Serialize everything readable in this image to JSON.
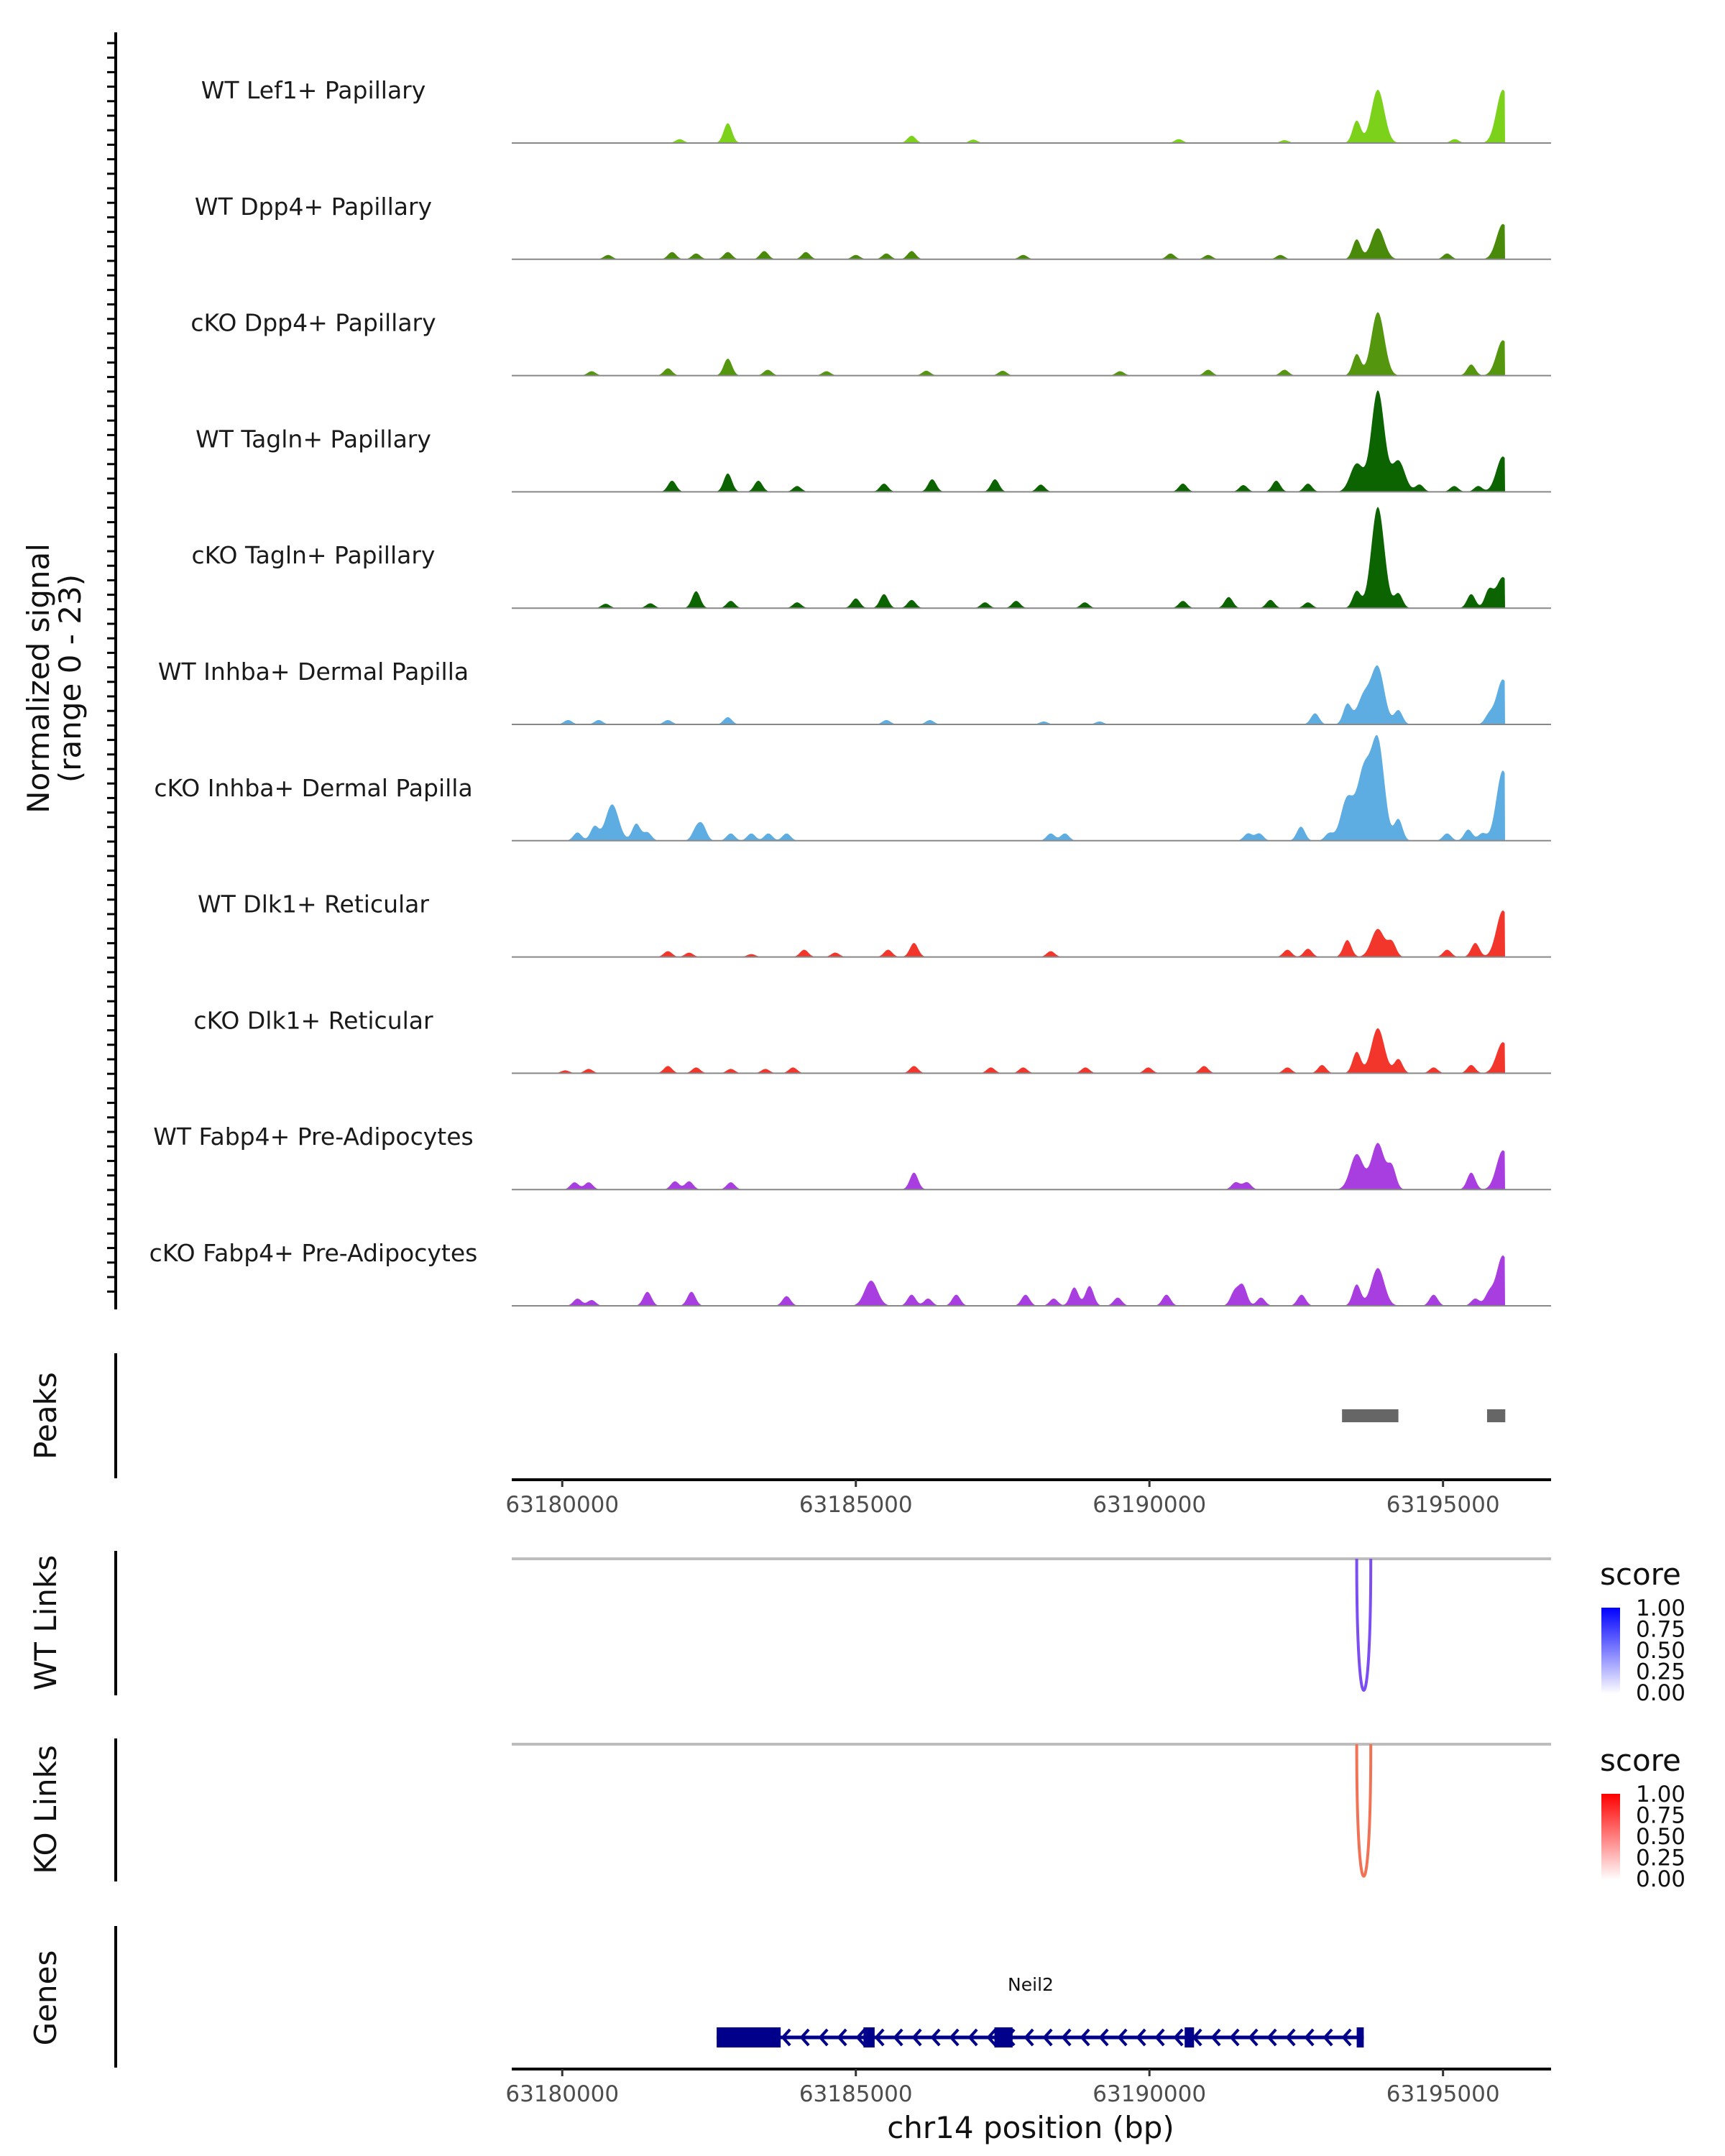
{
  "chart_data": {
    "type": "area",
    "title": "",
    "xlabel": "chr14 position (bp)",
    "ylabel": "Normalized signal\n(range 0 - 23)",
    "ylabel_line1": "Normalized signal",
    "ylabel_line2": "(range 0 - 23)",
    "xlim": [
      63179140,
      63196840
    ],
    "ylim": [
      0,
      23
    ],
    "x_ticks": [
      "63180000",
      "63185000",
      "63190000",
      "63195000"
    ],
    "x_tick_values": [
      63180000,
      63185000,
      63190000,
      63195000
    ],
    "tracks": [
      {
        "name": "WT Lef1+ Papillary",
        "color": "#7CD11A",
        "peaks": [
          [
            63182820,
            4.1
          ],
          [
            63185950,
            1.5
          ],
          [
            63193530,
            4.6
          ],
          [
            63193890,
            11.0
          ],
          [
            63196020,
            11.0
          ],
          [
            63182000,
            0.8
          ],
          [
            63187000,
            0.7
          ],
          [
            63190500,
            0.8
          ],
          [
            63192300,
            0.6
          ],
          [
            63195200,
            0.8
          ]
        ]
      },
      {
        "name": "WT Dpp4+ Papillary",
        "color": "#4A8A0A",
        "peaks": [
          [
            63180780,
            0.9
          ],
          [
            63181870,
            1.5
          ],
          [
            63182280,
            1.2
          ],
          [
            63182820,
            1.5
          ],
          [
            63183440,
            1.7
          ],
          [
            63184150,
            1.5
          ],
          [
            63185000,
            0.9
          ],
          [
            63185520,
            1.2
          ],
          [
            63185950,
            1.7
          ],
          [
            63187850,
            0.9
          ],
          [
            63190360,
            1.2
          ],
          [
            63191000,
            0.9
          ],
          [
            63192230,
            0.9
          ],
          [
            63193530,
            4.1
          ],
          [
            63193890,
            6.4
          ],
          [
            63195070,
            1.2
          ],
          [
            63196020,
            7.3
          ]
        ]
      },
      {
        "name": "cKO Dpp4+ Papillary",
        "color": "#55960F",
        "peaks": [
          [
            63180500,
            0.9
          ],
          [
            63181800,
            1.5
          ],
          [
            63182820,
            3.5
          ],
          [
            63183500,
            1.2
          ],
          [
            63184500,
            0.9
          ],
          [
            63186200,
            1.0
          ],
          [
            63187500,
            1.0
          ],
          [
            63189500,
            0.9
          ],
          [
            63191000,
            1.2
          ],
          [
            63192300,
            1.2
          ],
          [
            63193530,
            4.4
          ],
          [
            63193890,
            13.1
          ],
          [
            63195480,
            2.3
          ],
          [
            63196020,
            7.3
          ]
        ]
      },
      {
        "name": "WT Tagln+ Papillary",
        "color": "#0B6400",
        "peaks": [
          [
            63181870,
            2.3
          ],
          [
            63182820,
            3.8
          ],
          [
            63183340,
            2.3
          ],
          [
            63184000,
            1.2
          ],
          [
            63185480,
            1.7
          ],
          [
            63186300,
            2.6
          ],
          [
            63187370,
            2.6
          ],
          [
            63188150,
            1.5
          ],
          [
            63190570,
            1.7
          ],
          [
            63191600,
            1.4
          ],
          [
            63192160,
            2.3
          ],
          [
            63192700,
            1.7
          ],
          [
            63193530,
            5.8
          ],
          [
            63193890,
            20.9
          ],
          [
            63194240,
            6.4
          ],
          [
            63194600,
            1.5
          ],
          [
            63195190,
            1.2
          ],
          [
            63195600,
            1.2
          ],
          [
            63196020,
            7.3
          ]
        ]
      },
      {
        "name": "cKO Tagln+ Papillary",
        "color": "#0B6400",
        "peaks": [
          [
            63180740,
            0.9
          ],
          [
            63181500,
            1.0
          ],
          [
            63182280,
            3.5
          ],
          [
            63182870,
            1.5
          ],
          [
            63184000,
            1.2
          ],
          [
            63185000,
            2.0
          ],
          [
            63185480,
            2.9
          ],
          [
            63185950,
            1.7
          ],
          [
            63187200,
            1.2
          ],
          [
            63187730,
            1.5
          ],
          [
            63188900,
            1.2
          ],
          [
            63190570,
            1.5
          ],
          [
            63191350,
            2.3
          ],
          [
            63192060,
            1.7
          ],
          [
            63192700,
            1.2
          ],
          [
            63193530,
            3.5
          ],
          [
            63193890,
            20.9
          ],
          [
            63194240,
            3.0
          ],
          [
            63195480,
            2.9
          ],
          [
            63195780,
            3.5
          ],
          [
            63196020,
            6.4
          ]
        ]
      },
      {
        "name": "WT Inhba+ Dermal Papilla",
        "color": "#5DADE2",
        "peaks": [
          [
            63180100,
            0.9
          ],
          [
            63180620,
            0.9
          ],
          [
            63181800,
            0.9
          ],
          [
            63182820,
            1.5
          ],
          [
            63185520,
            0.9
          ],
          [
            63186260,
            0.9
          ],
          [
            63188200,
            0.6
          ],
          [
            63189150,
            0.6
          ],
          [
            63192820,
            2.3
          ],
          [
            63193370,
            4.1
          ],
          [
            63193650,
            5.8
          ],
          [
            63193890,
            11.6
          ],
          [
            63194240,
            2.9
          ],
          [
            63195780,
            1.7
          ],
          [
            63196020,
            9.3
          ]
        ]
      },
      {
        "name": "cKO Inhba+ Dermal Papilla",
        "color": "#5DADE2",
        "peaks": [
          [
            63180260,
            1.7
          ],
          [
            63180550,
            2.9
          ],
          [
            63180850,
            7.5
          ],
          [
            63181260,
            3.5
          ],
          [
            63181450,
            1.7
          ],
          [
            63182280,
            2.3
          ],
          [
            63182390,
            2.9
          ],
          [
            63182870,
            1.5
          ],
          [
            63183220,
            1.5
          ],
          [
            63183510,
            1.5
          ],
          [
            63183820,
            1.5
          ],
          [
            63188320,
            1.5
          ],
          [
            63188560,
            1.5
          ],
          [
            63191680,
            1.5
          ],
          [
            63191870,
            1.5
          ],
          [
            63192580,
            2.9
          ],
          [
            63193060,
            1.5
          ],
          [
            63193370,
            8.7
          ],
          [
            63193650,
            13.9
          ],
          [
            63193890,
            20.3
          ],
          [
            63194240,
            4.4
          ],
          [
            63195070,
            1.5
          ],
          [
            63195430,
            2.3
          ],
          [
            63195670,
            1.5
          ],
          [
            63196020,
            14.5
          ]
        ]
      },
      {
        "name": "WT Dlk1+ Reticular",
        "color": "#F2362C",
        "peaks": [
          [
            63181800,
            1.2
          ],
          [
            63182160,
            0.9
          ],
          [
            63183220,
            0.6
          ],
          [
            63184120,
            1.5
          ],
          [
            63184650,
            0.9
          ],
          [
            63185550,
            1.5
          ],
          [
            63185990,
            2.9
          ],
          [
            63188320,
            1.2
          ],
          [
            63192350,
            1.5
          ],
          [
            63192700,
            1.7
          ],
          [
            63193370,
            3.5
          ],
          [
            63193890,
            5.8
          ],
          [
            63194130,
            2.9
          ],
          [
            63195070,
            1.5
          ],
          [
            63195550,
            2.9
          ],
          [
            63196020,
            9.6
          ]
        ]
      },
      {
        "name": "cKO Dlk1+ Reticular",
        "color": "#F2362C",
        "peaks": [
          [
            63180050,
            0.6
          ],
          [
            63180450,
            0.9
          ],
          [
            63181800,
            1.5
          ],
          [
            63182280,
            1.2
          ],
          [
            63182870,
            0.9
          ],
          [
            63183460,
            0.9
          ],
          [
            63183930,
            1.2
          ],
          [
            63185990,
            1.5
          ],
          [
            63187300,
            1.2
          ],
          [
            63187850,
            1.2
          ],
          [
            63188910,
            1.2
          ],
          [
            63189980,
            1.2
          ],
          [
            63190930,
            1.5
          ],
          [
            63192350,
            1.2
          ],
          [
            63192940,
            1.7
          ],
          [
            63193530,
            4.4
          ],
          [
            63193890,
            9.3
          ],
          [
            63194240,
            2.9
          ],
          [
            63194840,
            1.2
          ],
          [
            63195480,
            1.7
          ],
          [
            63196020,
            6.4
          ]
        ]
      },
      {
        "name": "WT Fabp4+ Pre-Adipocytes",
        "color": "#A93EE0",
        "peaks": [
          [
            63180210,
            1.5
          ],
          [
            63180450,
            1.5
          ],
          [
            63181920,
            1.7
          ],
          [
            63182160,
            1.7
          ],
          [
            63182870,
            1.5
          ],
          [
            63185990,
            3.5
          ],
          [
            63191470,
            1.5
          ],
          [
            63191660,
            1.5
          ],
          [
            63193530,
            7.3
          ],
          [
            63193890,
            9.6
          ],
          [
            63194130,
            4.4
          ],
          [
            63195480,
            3.5
          ],
          [
            63196020,
            8.1
          ]
        ]
      },
      {
        "name": "cKO Fabp4+ Pre-Adipocytes",
        "color": "#A93EE0",
        "peaks": [
          [
            63180260,
            1.5
          ],
          [
            63180500,
            1.2
          ],
          [
            63181450,
            2.9
          ],
          [
            63182200,
            2.9
          ],
          [
            63183820,
            2.0
          ],
          [
            63185260,
            5.2
          ],
          [
            63185950,
            2.3
          ],
          [
            63186230,
            1.5
          ],
          [
            63186710,
            2.3
          ],
          [
            63187890,
            2.3
          ],
          [
            63188370,
            1.5
          ],
          [
            63188720,
            3.8
          ],
          [
            63188980,
            4.1
          ],
          [
            63189460,
            1.7
          ],
          [
            63190290,
            2.3
          ],
          [
            63191450,
            2.9
          ],
          [
            63191590,
            4.1
          ],
          [
            63191900,
            1.7
          ],
          [
            63192590,
            2.3
          ],
          [
            63193530,
            4.4
          ],
          [
            63193890,
            7.8
          ],
          [
            63194840,
            2.3
          ],
          [
            63195550,
            1.5
          ],
          [
            63195780,
            2.3
          ],
          [
            63196020,
            10.4
          ]
        ]
      }
    ],
    "peaks_panel": {
      "label": "Peaks",
      "color": "#666666",
      "regions": [
        [
          63193280,
          63194240
        ],
        [
          63195750,
          63196060
        ]
      ]
    },
    "links": [
      {
        "label": "WT Links",
        "legend_title": "score",
        "color_high": "#0000FF",
        "arc_color": "#7B4DF2",
        "arcs": [
          {
            "start": 63193530,
            "end": 63193770,
            "score": 0.7
          }
        ]
      },
      {
        "label": "KO Links",
        "legend_title": "score",
        "color_high": "#FF0000",
        "arc_color": "#F27255",
        "arcs": [
          {
            "start": 63193530,
            "end": 63193770,
            "score": 0.6
          }
        ]
      }
    ],
    "legend_ticks": [
      "1.00",
      "0.75",
      "0.50",
      "0.25",
      "0.00"
    ],
    "genes": {
      "label": "Genes",
      "color": "#00008B",
      "name": "Neil2",
      "strand": "-",
      "start": 63182630,
      "end": 63193650,
      "exons": [
        [
          63182630,
          63183720
        ],
        [
          63185130,
          63185320
        ],
        [
          63187360,
          63187670
        ],
        [
          63190600,
          63190760
        ],
        [
          63193530,
          63193650
        ]
      ]
    }
  }
}
